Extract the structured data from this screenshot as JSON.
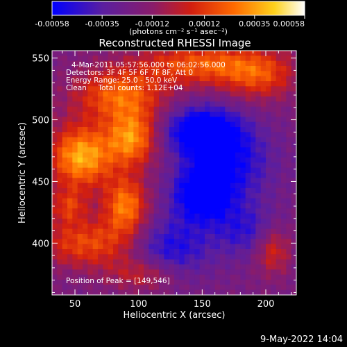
{
  "chart_data": {
    "type": "heatmap",
    "title": "Reconstructed RHESSI Image",
    "xlabel": "Heliocentric X (arcsec)",
    "ylabel": "Heliocentric Y (arcsec)",
    "xlim": [
      32,
      224
    ],
    "ylim": [
      358,
      556
    ],
    "x_ticks": [
      50,
      100,
      150,
      200
    ],
    "y_ticks": [
      400,
      450,
      500,
      550
    ],
    "colormap": "blue-purple-red-yellow-white",
    "colorbar": {
      "range": [
        -0.00058,
        0.00058
      ],
      "tick_values": [
        -0.00058,
        -0.00035,
        -0.00012,
        0.00012,
        0.00035,
        0.00058
      ],
      "tick_labels": [
        "-0.00058",
        "-0.00035",
        "-0.00012",
        "0.00012",
        "0.00035",
        "0.00058"
      ],
      "unit_label": "(photons cm⁻² s⁻¹ asec⁻²)"
    },
    "annotations": [
      "4-Mar-2011 05:57:56.000 to 06:02:56.000",
      "Detectors: 3F 4F 5F 6F 7F 8F, Att 0",
      "Energy Range: 25.0 - 50.0 keV",
      "Clean     Total counts: 1.12E+04"
    ],
    "peak_label": "Position of Peak = [149,546]",
    "peak_position": [
      149,
      546
    ],
    "blobs": [
      {
        "x": 55,
        "y": 470,
        "sx": 18,
        "sy": 18,
        "amp": 0.00058
      },
      {
        "x": 95,
        "y": 485,
        "sx": 14,
        "sy": 16,
        "amp": 0.0005
      },
      {
        "x": 85,
        "y": 520,
        "sx": 25,
        "sy": 15,
        "amp": 0.00042
      },
      {
        "x": 150,
        "y": 545,
        "sx": 35,
        "sy": 12,
        "amp": 0.0004
      },
      {
        "x": 195,
        "y": 535,
        "sx": 20,
        "sy": 14,
        "amp": 0.0003
      },
      {
        "x": 90,
        "y": 430,
        "sx": 12,
        "sy": 16,
        "amp": 0.00048
      },
      {
        "x": 60,
        "y": 400,
        "sx": 28,
        "sy": 14,
        "amp": 0.00036
      },
      {
        "x": 105,
        "y": 375,
        "sx": 20,
        "sy": 10,
        "amp": 0.00026
      },
      {
        "x": 205,
        "y": 395,
        "sx": 10,
        "sy": 14,
        "amp": 0.0003
      },
      {
        "x": 45,
        "y": 430,
        "sx": 10,
        "sy": 10,
        "amp": 0.00028
      },
      {
        "x": 150,
        "y": 490,
        "sx": 20,
        "sy": 14,
        "amp": -0.00055
      },
      {
        "x": 150,
        "y": 440,
        "sx": 16,
        "sy": 16,
        "amp": -0.00052
      },
      {
        "x": 175,
        "y": 465,
        "sx": 22,
        "sy": 22,
        "amp": -0.0003
      },
      {
        "x": 125,
        "y": 395,
        "sx": 22,
        "sy": 18,
        "amp": -0.00032
      },
      {
        "x": 185,
        "y": 410,
        "sx": 18,
        "sy": 15,
        "amp": -0.00025
      }
    ]
  },
  "footer": {
    "timestamp": "9-May-2022 14:04"
  }
}
